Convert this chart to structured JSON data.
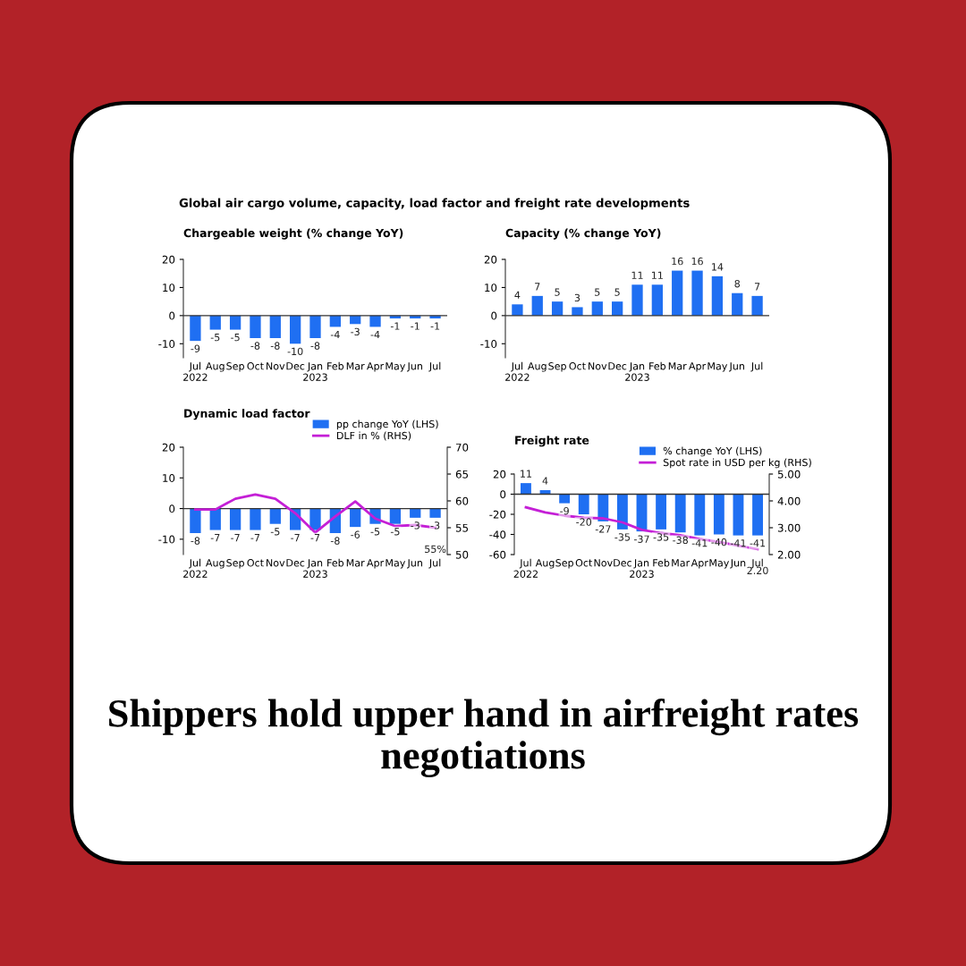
{
  "chart_data": [
    {
      "type": "other",
      "title": "Global air cargo volume, capacity, load factor and freight rate developments"
    },
    {
      "type": "bar",
      "title": "Chargeable weight (% change YoY)",
      "categories": [
        "Jul\n2022",
        "Aug",
        "Sep",
        "Oct",
        "Nov",
        "Dec",
        "Jan\n2023",
        "Feb",
        "Mar",
        "Apr",
        "May",
        "Jun",
        "Jul"
      ],
      "values": [
        -9,
        -5,
        -5,
        -8,
        -8,
        -10,
        -8,
        -4,
        -3,
        -4,
        -1,
        -1,
        -1
      ],
      "color": "#1f6ff2",
      "ylim": [
        -15,
        20
      ],
      "yticks": [
        -10,
        0,
        10,
        20
      ],
      "data_labels": true
    },
    {
      "type": "bar",
      "title": "Capacity (% change YoY)",
      "categories": [
        "Jul\n2022",
        "Aug",
        "Sep",
        "Oct",
        "Nov",
        "Dec",
        "Jan\n2023",
        "Feb",
        "Mar",
        "Apr",
        "May",
        "Jun",
        "Jul"
      ],
      "values": [
        4,
        7,
        5,
        3,
        5,
        5,
        11,
        11,
        16,
        16,
        14,
        8,
        7
      ],
      "color": "#1f6ff2",
      "ylim": [
        -15,
        20
      ],
      "yticks": [
        -10,
        0,
        10,
        20
      ],
      "data_labels": true
    },
    {
      "type": "bar",
      "title": "Dynamic load factor",
      "categories": [
        "Jul\n2022",
        "Aug",
        "Sep",
        "Oct",
        "Nov",
        "Dec",
        "Jan\n2023",
        "Feb",
        "Mar",
        "Apr",
        "May",
        "Jun",
        "Jul"
      ],
      "ylim": [
        -15,
        20
      ],
      "yticks": [
        -10,
        0,
        10,
        20
      ],
      "y2lim": [
        50,
        70
      ],
      "y2ticks": [
        50,
        55,
        60,
        65,
        70
      ],
      "legend": "top right",
      "series": [
        {
          "name": "pp change YoY (LHS)",
          "type": "bar",
          "color": "#1f6ff2",
          "values": [
            -8,
            -7,
            -7,
            -7,
            -5,
            -7,
            -7,
            -8,
            -6,
            -5,
            -5,
            -3,
            -3
          ],
          "value_labels": [
            "-8",
            "-7",
            "-7",
            "-7",
            "-5",
            "-7",
            "-7",
            "-8",
            "-6",
            "-5",
            "-5",
            "-3",
            "-3"
          ]
        },
        {
          "name": "DLF in % (RHS)",
          "type": "line",
          "axis": "y2",
          "color": "#c41fd6",
          "values": [
            58.4,
            58.4,
            60.4,
            61.2,
            60.4,
            57.7,
            54.1,
            57.1,
            59.9,
            56.7,
            55.3,
            55.5,
            55
          ],
          "value_labels": [
            null,
            null,
            null,
            null,
            null,
            null,
            null,
            null,
            null,
            null,
            null,
            null,
            "55%"
          ]
        }
      ]
    },
    {
      "type": "bar",
      "title": "Freight rate",
      "categories": [
        "Jul\n2022",
        "Aug",
        "Sep",
        "Oct",
        "Nov",
        "Dec",
        "Jan\n2023",
        "Feb",
        "Mar",
        "Apr",
        "May",
        "Jun",
        "Jul"
      ],
      "ylim": [
        -60,
        20
      ],
      "yticks": [
        -60,
        -40,
        -20,
        0,
        20
      ],
      "y2lim": [
        2.0,
        5.0
      ],
      "y2ticks": [
        {
          "value": 2.0,
          "label": "2.00"
        },
        {
          "value": 3.0,
          "label": "3.00"
        },
        {
          "value": 4.0,
          "label": "4.00"
        },
        {
          "value": 5.0,
          "label": "5.00"
        }
      ],
      "legend": "top right",
      "series": [
        {
          "name": "% change YoY (LHS)",
          "type": "bar",
          "color": "#1f6ff2",
          "values": [
            11,
            4,
            -9,
            -20,
            -27,
            -35,
            -37,
            -35,
            -38,
            -41,
            -40,
            -41,
            -41
          ],
          "value_labels": [
            "11",
            "4",
            "-9",
            "-20",
            "-27",
            "-35",
            "-37",
            "-35",
            "-38",
            "-41",
            "-40",
            "-41",
            "-41"
          ]
        },
        {
          "name": "Spot rate in USD per kg (RHS)",
          "type": "line",
          "axis": "y2",
          "color": "#c41fd6",
          "values": [
            3.76,
            3.57,
            3.45,
            3.37,
            3.35,
            3.2,
            2.92,
            2.8,
            2.72,
            2.58,
            2.47,
            2.33,
            2.2
          ],
          "value_labels": [
            null,
            null,
            null,
            null,
            null,
            null,
            null,
            null,
            null,
            null,
            null,
            null,
            "2.20"
          ]
        }
      ]
    },
    {
      "type": "other",
      "title": "Shippers hold upper hand in airfreight rates negotiations"
    }
  ]
}
